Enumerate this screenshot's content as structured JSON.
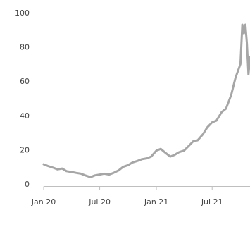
{
  "chart_data": {
    "type": "line",
    "title": "",
    "xlabel": "",
    "ylabel": "",
    "x_ticks": [
      {
        "label": "Jan 20",
        "value": "2020-01"
      },
      {
        "label": "Jul 20",
        "value": "2020-07"
      },
      {
        "label": "Jan 21",
        "value": "2021-01"
      },
      {
        "label": "Jul 21",
        "value": "2021-07"
      }
    ],
    "y_ticks": [
      0,
      20,
      40,
      60,
      80,
      100
    ],
    "ylim": [
      0,
      100
    ],
    "xlim": [
      "2020-01",
      "2021-11"
    ],
    "grid": false,
    "colors": {
      "line": "#a6a6a6",
      "axis": "#bfbfbf",
      "text": "#444444"
    },
    "series": [
      {
        "name": "",
        "points": [
          [
            "2020-01",
            11.5
          ],
          [
            "2020-01-15",
            10.5
          ],
          [
            "2020-02",
            9.5
          ],
          [
            "2020-02-15",
            8.5
          ],
          [
            "2020-03",
            9
          ],
          [
            "2020-03-15",
            7.5
          ],
          [
            "2020-04",
            7
          ],
          [
            "2020-04-15",
            6.5
          ],
          [
            "2020-05",
            6
          ],
          [
            "2020-05-15",
            5
          ],
          [
            "2020-06",
            4
          ],
          [
            "2020-06-15",
            5
          ],
          [
            "2020-07",
            5.5
          ],
          [
            "2020-07-15",
            6
          ],
          [
            "2020-08",
            5.5
          ],
          [
            "2020-08-15",
            6.5
          ],
          [
            "2020-09",
            8
          ],
          [
            "2020-09-15",
            10
          ],
          [
            "2020-10",
            11
          ],
          [
            "2020-10-15",
            12.5
          ],
          [
            "2020-11",
            13.5
          ],
          [
            "2020-11-15",
            14.5
          ],
          [
            "2020-12",
            15
          ],
          [
            "2020-12-15",
            16
          ],
          [
            "2021-01",
            19.5
          ],
          [
            "2021-01-15",
            20.5
          ],
          [
            "2021-02",
            18
          ],
          [
            "2021-02-15",
            16
          ],
          [
            "2021-03",
            17
          ],
          [
            "2021-03-15",
            18.5
          ],
          [
            "2021-04",
            19.5
          ],
          [
            "2021-04-15",
            22
          ],
          [
            "2021-05",
            25
          ],
          [
            "2021-05-15",
            25.5
          ],
          [
            "2021-06",
            29
          ],
          [
            "2021-06-15",
            33
          ],
          [
            "2021-07",
            36
          ],
          [
            "2021-07-15",
            37
          ],
          [
            "2021-08",
            42
          ],
          [
            "2021-08-15",
            44
          ],
          [
            "2021-09",
            52
          ],
          [
            "2021-09-15",
            62
          ],
          [
            "2021-10",
            70
          ],
          [
            "2021-10-07",
            93
          ],
          [
            "2021-10-12",
            88
          ],
          [
            "2021-10-17",
            93
          ],
          [
            "2021-10-22",
            82
          ],
          [
            "2021-10-27",
            64
          ],
          [
            "2021-11",
            74
          ]
        ]
      }
    ]
  }
}
